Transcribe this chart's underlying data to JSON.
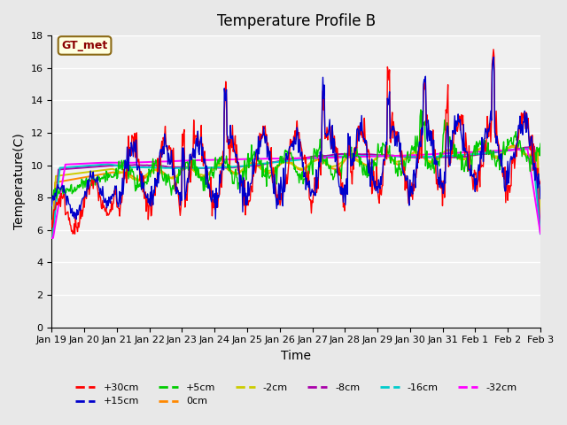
{
  "title": "Temperature Profile B",
  "xlabel": "Time",
  "ylabel": "Temperature(C)",
  "ylim": [
    0,
    18
  ],
  "yticks": [
    0,
    2,
    4,
    6,
    8,
    10,
    12,
    14,
    16,
    18
  ],
  "annotation_text": "GT_met",
  "annotation_color": "#8B0000",
  "annotation_bg": "#FFFFE0",
  "annotation_edge": "#8B6914",
  "series_colors": {
    "+30cm": "#FF0000",
    "+15cm": "#0000CC",
    "+5cm": "#00CC00",
    "0cm": "#FF8800",
    "-2cm": "#CCCC00",
    "-8cm": "#AA00AA",
    "-16cm": "#00CCCC",
    "-32cm": "#FF00FF"
  },
  "x_tick_labels": [
    "Jan 19",
    "Jan 20",
    "Jan 21",
    "Jan 22",
    "Jan 23",
    "Jan 24",
    "Jan 25",
    "Jan 26",
    "Jan 27",
    "Jan 28",
    "Jan 29",
    "Jan 30",
    "Jan 31",
    "Feb 1",
    "Feb 2",
    "Feb 3"
  ],
  "background_color": "#E8E8E8",
  "plot_bg_color": "#F0F0F0",
  "grid_color": "#FFFFFF",
  "title_fontsize": 12,
  "axis_fontsize": 10,
  "tick_fontsize": 8
}
